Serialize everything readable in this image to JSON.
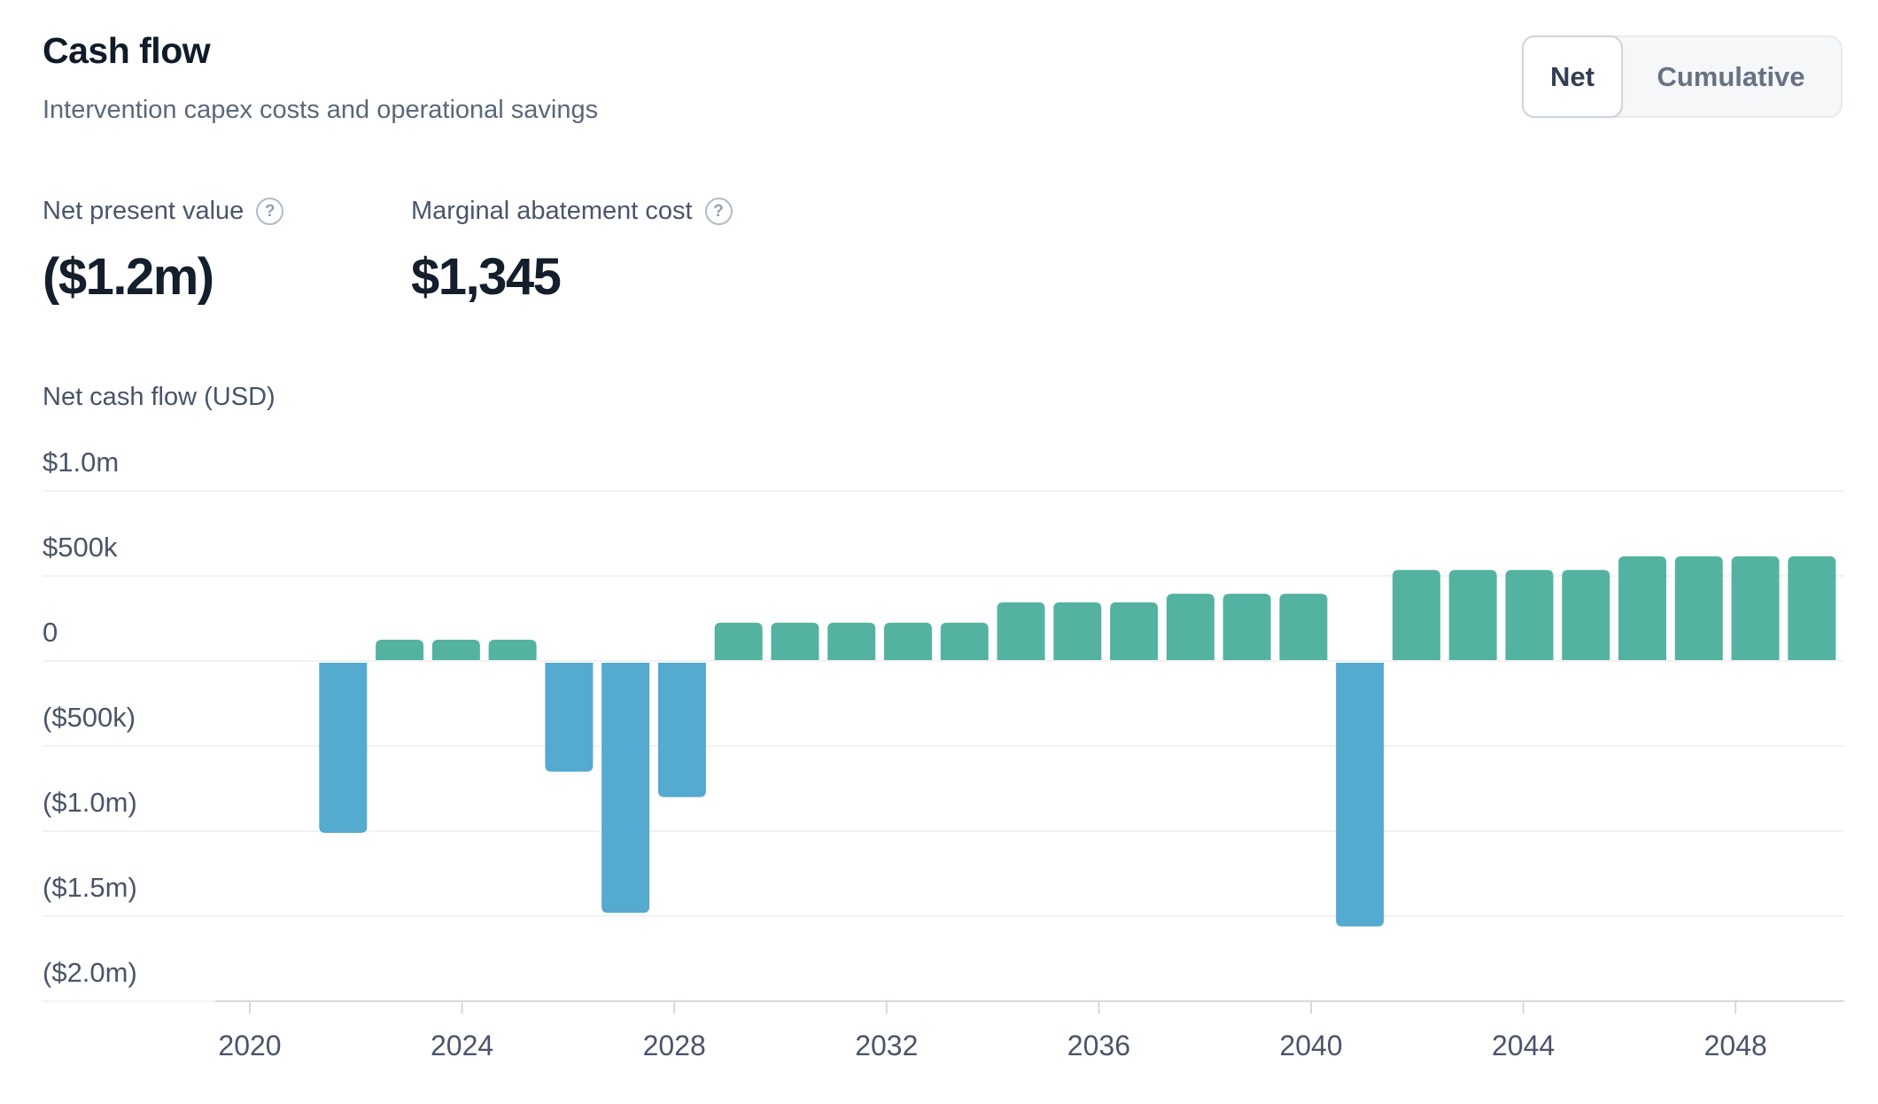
{
  "header": {
    "title": "Cash flow",
    "subtitle": "Intervention capex costs and operational savings"
  },
  "toggle": {
    "options": [
      {
        "label": "Net",
        "selected": true
      },
      {
        "label": "Cumulative",
        "selected": false
      }
    ]
  },
  "stats": [
    {
      "label": "Net present value",
      "value": "($1.2m)",
      "help_icon": "question-mark"
    },
    {
      "label": "Marginal abatement cost",
      "value": "$1,345",
      "help_icon": "question-mark"
    }
  ],
  "chart_data": {
    "type": "bar",
    "title": "Net cash flow (USD)",
    "xlabel": "",
    "ylabel": "Net cash flow (USD)",
    "x": [
      2022,
      2023,
      2024,
      2025,
      2026,
      2027,
      2028,
      2029,
      2030,
      2031,
      2032,
      2033,
      2034,
      2035,
      2036,
      2037,
      2038,
      2039,
      2040,
      2041,
      2042,
      2043,
      2044,
      2045,
      2046,
      2047,
      2048
    ],
    "values": [
      -1000000,
      120000,
      120000,
      120000,
      -640000,
      -1470000,
      -790000,
      220000,
      220000,
      220000,
      220000,
      220000,
      340000,
      340000,
      340000,
      390000,
      390000,
      390000,
      -1550000,
      530000,
      530000,
      530000,
      530000,
      610000,
      610000,
      610000,
      610000
    ],
    "y_ticks": [
      {
        "label": "$1.0m",
        "value": 1000000
      },
      {
        "label": "$500k",
        "value": 500000
      },
      {
        "label": "0",
        "value": 0
      },
      {
        "label": "($500k)",
        "value": -500000
      },
      {
        "label": "($1.0m)",
        "value": -1000000
      },
      {
        "label": "($1.5m)",
        "value": -1500000
      },
      {
        "label": "($2.0m)",
        "value": -2000000
      }
    ],
    "x_ticks": [
      2020,
      2024,
      2028,
      2032,
      2036,
      2040,
      2044,
      2048
    ],
    "ylim": [
      -2000000,
      1000000
    ],
    "grid": true,
    "legend": "none",
    "colors": {
      "positive": "#54b3a0",
      "negative": "#54aacf"
    }
  }
}
